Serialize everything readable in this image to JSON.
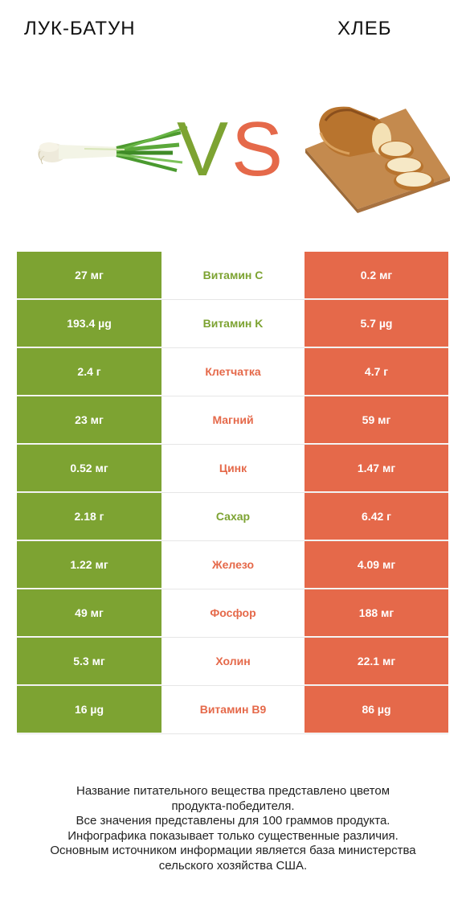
{
  "header": {
    "left_title": "ЛУК-БАТУН",
    "right_title": "ХЛЕБ",
    "vs_v": "V",
    "vs_s": "S"
  },
  "colors": {
    "left": "#7da332",
    "right": "#e5694a"
  },
  "rows": [
    {
      "left": "27 мг",
      "nutrient": "Витамин C",
      "right": "0.2 мг",
      "winner": "left"
    },
    {
      "left": "193.4 µg",
      "nutrient": "Витамин K",
      "right": "5.7 µg",
      "winner": "left"
    },
    {
      "left": "2.4 г",
      "nutrient": "Клетчатка",
      "right": "4.7 г",
      "winner": "right"
    },
    {
      "left": "23 мг",
      "nutrient": "Магний",
      "right": "59 мг",
      "winner": "right"
    },
    {
      "left": "0.52 мг",
      "nutrient": "Цинк",
      "right": "1.47 мг",
      "winner": "right"
    },
    {
      "left": "2.18 г",
      "nutrient": "Сахар",
      "right": "6.42 г",
      "winner": "left"
    },
    {
      "left": "1.22 мг",
      "nutrient": "Железо",
      "right": "4.09 мг",
      "winner": "right"
    },
    {
      "left": "49 мг",
      "nutrient": "Фосфор",
      "right": "188 мг",
      "winner": "right"
    },
    {
      "left": "5.3 мг",
      "nutrient": "Холин",
      "right": "22.1 мг",
      "winner": "right"
    },
    {
      "left": "16 µg",
      "nutrient": "Витамин B9",
      "right": "86 µg",
      "winner": "right"
    }
  ],
  "footnote": [
    "Название питательного вещества представлено цветом",
    "продукта-победителя.",
    "Все значения представлены для 100 граммов продукта.",
    "Инфографика показывает только существенные различия.",
    "Основным источником информации является база министерства",
    "сельского хозяйства США."
  ]
}
